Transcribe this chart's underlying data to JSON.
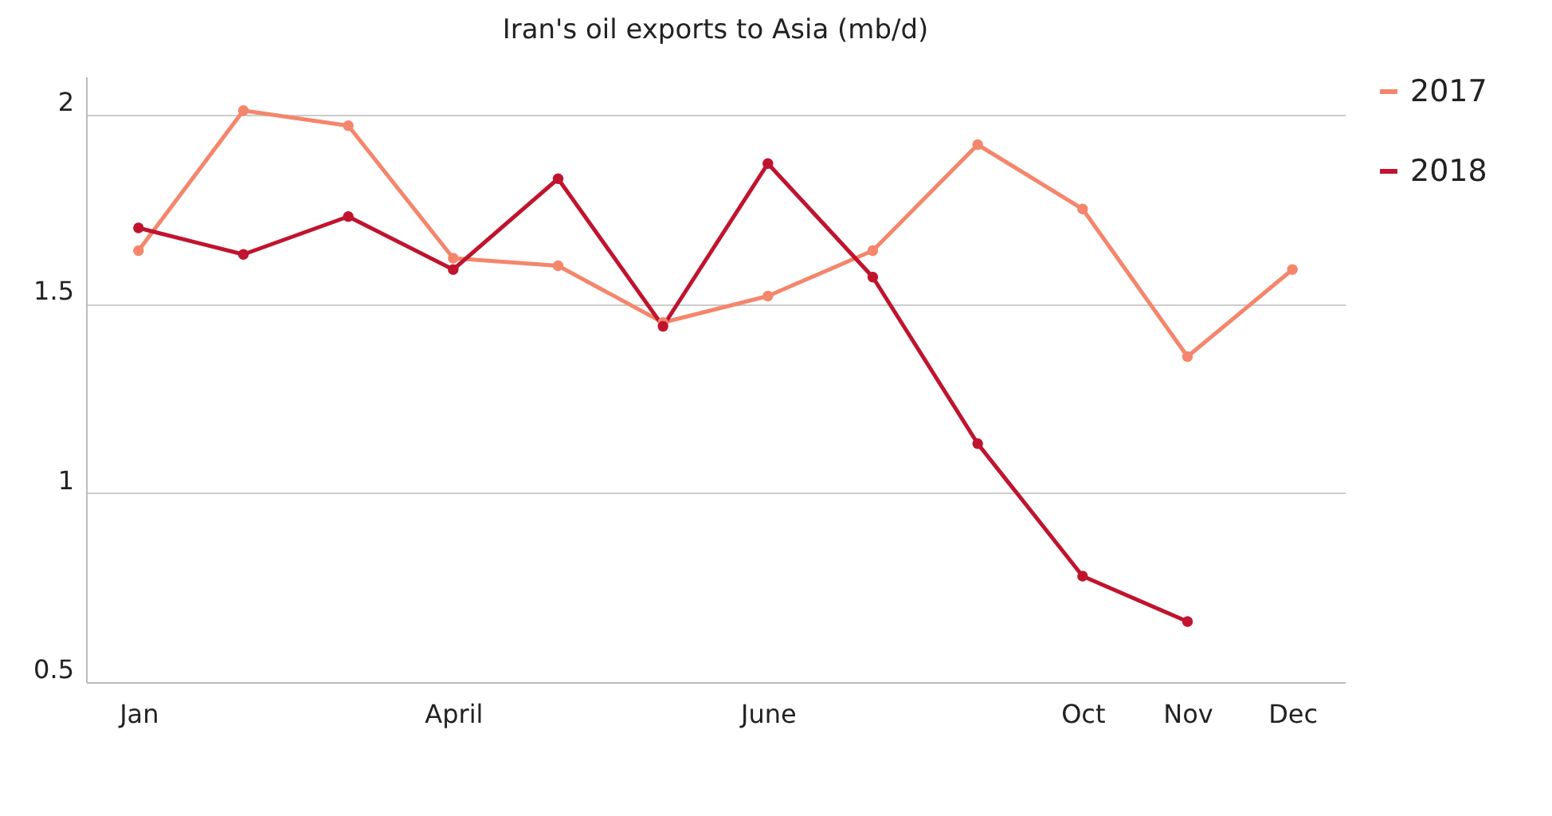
{
  "chart_data": {
    "type": "line",
    "title": "Iran's oil exports to Asia (mb/d)",
    "categories": [
      "Jan",
      null,
      null,
      "April",
      null,
      null,
      "June",
      null,
      null,
      "Oct",
      "Nov",
      "Dec"
    ],
    "series": [
      {
        "name": "2017",
        "color": "#f4866c",
        "values": [
          1.64,
          2.01,
          1.97,
          1.62,
          1.6,
          1.45,
          1.52,
          1.64,
          1.92,
          1.75,
          1.36,
          1.59
        ]
      },
      {
        "name": "2018",
        "color": "#c0142e",
        "values": [
          1.7,
          1.63,
          1.73,
          1.59,
          1.83,
          1.44,
          1.87,
          1.57,
          1.13,
          0.78,
          0.66,
          null
        ]
      }
    ],
    "ylim": [
      0.5,
      2.1
    ],
    "yticks": [
      0.5,
      1,
      1.5,
      2
    ],
    "grid": "y",
    "legend": "right",
    "marker": "circle",
    "line_style": "solid"
  }
}
